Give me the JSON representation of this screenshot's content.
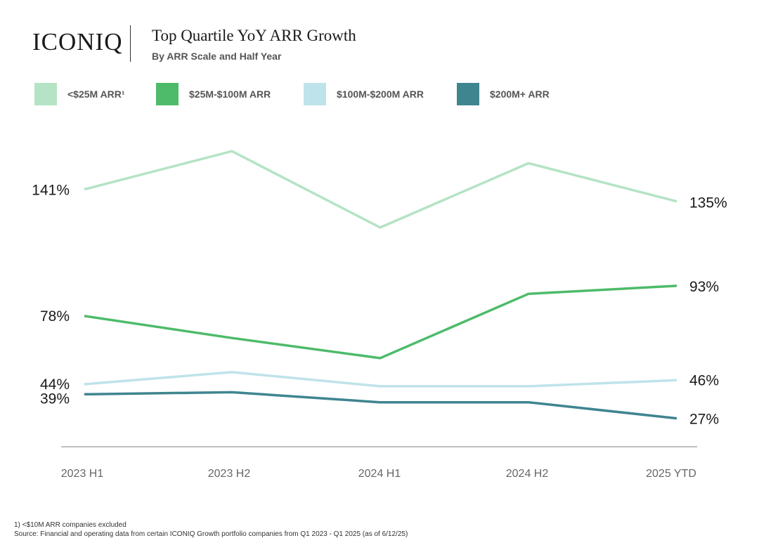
{
  "brand": {
    "logo_text": "ICONIQ"
  },
  "header": {
    "title": "Top Quartile YoY ARR Growth",
    "subtitle": "By ARR Scale and Half Year"
  },
  "legend": [
    {
      "label": "<$25M ARR¹",
      "color": "#b5e3c5"
    },
    {
      "label": "$25M-$100M ARR",
      "color": "#4dbb6a"
    },
    {
      "label": "$100M-$200M ARR",
      "color": "#bfe3ea"
    },
    {
      "label": "$200M+ ARR",
      "color": "#3f8590"
    }
  ],
  "chart_data": {
    "type": "line",
    "categories": [
      "2023 H1",
      "2023 H2",
      "2024 H1",
      "2024 H2",
      "2025 YTD"
    ],
    "series": [
      {
        "name": "<$25M ARR¹",
        "color": "#b5e3c5",
        "values": [
          141,
          160,
          122,
          154,
          135
        ],
        "start_label": "141%",
        "end_label": "135%"
      },
      {
        "name": "$25M-$100M ARR",
        "color": "#4dbb6a",
        "values": [
          78,
          67,
          57,
          89,
          93
        ],
        "start_label": "78%",
        "end_label": "93%"
      },
      {
        "name": "$100M-$200M ARR",
        "color": "#bfe3ea",
        "values": [
          44,
          50,
          43,
          43,
          46
        ],
        "start_label": "44%",
        "end_label": "46%"
      },
      {
        "name": "$200M+ ARR",
        "color": "#3f8590",
        "values": [
          39,
          40,
          35,
          35,
          27
        ],
        "start_label": "39%",
        "end_label": "27%"
      }
    ],
    "grid": false,
    "legend_position": "top"
  },
  "footnotes": {
    "note": "1) <$10M ARR companies excluded",
    "source": "Source: Financial and operating data from certain ICONIQ Growth portfolio companies from Q1 2023 - Q1 2025 (as of 6/12/25)"
  }
}
